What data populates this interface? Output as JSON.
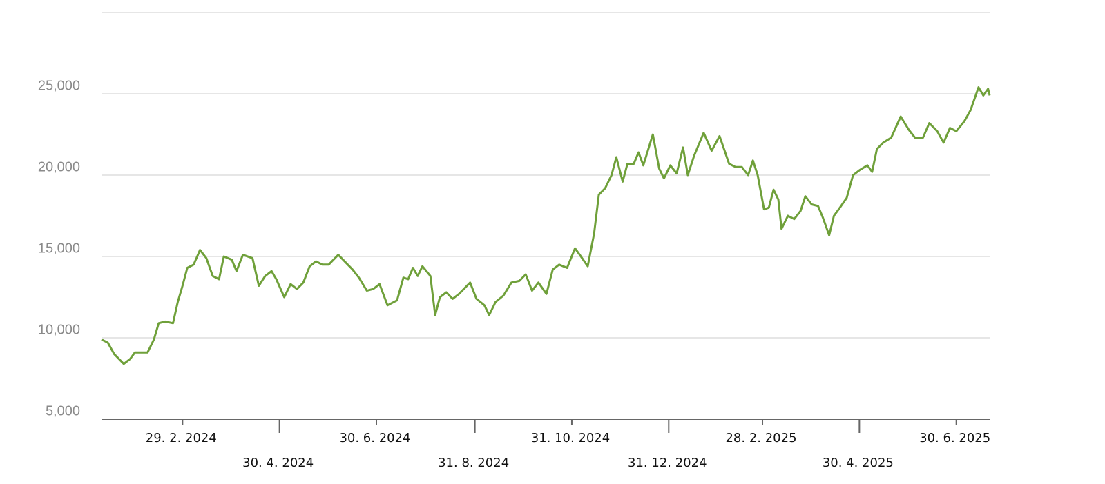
{
  "chart_data": {
    "type": "line",
    "x": [
      "2024-01-09",
      "2024-01-13",
      "2024-01-17",
      "2024-01-20",
      "2024-01-23",
      "2024-01-27",
      "2024-01-30",
      "2024-02-03",
      "2024-02-07",
      "2024-02-11",
      "2024-02-14",
      "2024-02-18",
      "2024-02-23",
      "2024-02-26",
      "2024-02-29",
      "2024-03-03",
      "2024-03-07",
      "2024-03-11",
      "2024-03-15",
      "2024-03-19",
      "2024-03-23",
      "2024-03-26",
      "2024-03-31",
      "2024-04-03",
      "2024-04-07",
      "2024-04-13",
      "2024-04-17",
      "2024-04-21",
      "2024-04-25",
      "2024-04-28",
      "2024-05-03",
      "2024-05-07",
      "2024-05-11",
      "2024-05-15",
      "2024-05-19",
      "2024-05-23",
      "2024-05-27",
      "2024-05-31",
      "2024-06-06",
      "2024-06-10",
      "2024-06-15",
      "2024-06-19",
      "2024-06-24",
      "2024-06-28",
      "2024-07-02",
      "2024-07-07",
      "2024-07-13",
      "2024-07-17",
      "2024-07-20",
      "2024-07-23",
      "2024-07-26",
      "2024-07-29",
      "2024-08-03",
      "2024-08-06",
      "2024-08-09",
      "2024-08-13",
      "2024-08-17",
      "2024-08-21",
      "2024-08-28",
      "2024-09-01",
      "2024-09-06",
      "2024-09-09",
      "2024-09-13",
      "2024-09-18",
      "2024-09-23",
      "2024-09-28",
      "2024-10-02",
      "2024-10-06",
      "2024-10-10",
      "2024-10-15",
      "2024-10-19",
      "2024-10-23",
      "2024-10-28",
      "2024-11-02",
      "2024-11-05",
      "2024-11-10",
      "2024-11-14",
      "2024-11-17",
      "2024-11-21",
      "2024-11-25",
      "2024-11-28",
      "2024-12-02",
      "2024-12-05",
      "2024-12-09",
      "2024-12-12",
      "2024-12-15",
      "2024-12-21",
      "2024-12-25",
      "2024-12-28",
      "2025-01-01",
      "2025-01-05",
      "2025-01-09",
      "2025-01-12",
      "2025-01-16",
      "2025-01-22",
      "2025-01-27",
      "2025-02-01",
      "2025-02-07",
      "2025-02-11",
      "2025-02-15",
      "2025-02-19",
      "2025-02-22",
      "2025-02-25",
      "2025-03-01",
      "2025-03-04",
      "2025-03-07",
      "2025-03-10",
      "2025-03-12",
      "2025-03-16",
      "2025-03-20",
      "2025-03-24",
      "2025-03-27",
      "2025-03-31",
      "2025-04-04",
      "2025-04-07",
      "2025-04-11",
      "2025-04-14",
      "2025-04-17",
      "2025-04-22",
      "2025-04-26",
      "2025-04-30",
      "2025-05-05",
      "2025-05-08",
      "2025-05-11",
      "2025-05-15",
      "2025-05-20",
      "2025-05-26",
      "2025-05-31",
      "2025-06-04",
      "2025-06-09",
      "2025-06-13",
      "2025-06-18",
      "2025-06-22",
      "2025-06-26",
      "2025-06-30",
      "2025-07-05",
      "2025-07-09",
      "2025-07-14",
      "2025-07-17",
      "2025-07-20",
      "2025-07-21"
    ],
    "series": [
      {
        "color": "#6fa03a",
        "values": [
          9900,
          9700,
          9000,
          8700,
          8400,
          8700,
          9100,
          9100,
          9100,
          9900,
          10900,
          11000,
          10900,
          12200,
          13200,
          14300,
          14500,
          15400,
          14900,
          13800,
          13600,
          15000,
          14800,
          14100,
          15100,
          14900,
          13200,
          13800,
          14100,
          13600,
          12500,
          13300,
          13000,
          13400,
          14400,
          14700,
          14500,
          14500,
          15100,
          14700,
          14200,
          13700,
          12900,
          13000,
          13300,
          12000,
          12300,
          13700,
          13600,
          14300,
          13800,
          14400,
          13800,
          11400,
          12500,
          12800,
          12400,
          12700,
          13400,
          12400,
          12000,
          11400,
          12200,
          12600,
          13400,
          13500,
          13900,
          12900,
          13400,
          12700,
          14200,
          14500,
          14300,
          15500,
          15100,
          14400,
          16400,
          18800,
          19200,
          20000,
          21100,
          19600,
          20700,
          20700,
          21400,
          20600,
          22500,
          20400,
          19800,
          20600,
          20100,
          21700,
          20000,
          21200,
          22600,
          21500,
          22400,
          20700,
          20500,
          20500,
          20000,
          20900,
          20000,
          17900,
          18000,
          19100,
          18500,
          16700,
          17500,
          17300,
          17800,
          18700,
          18200,
          18100,
          17400,
          16300,
          17500,
          17900,
          18600,
          20000,
          20300,
          20600,
          20200,
          21600,
          22000,
          22300,
          23600,
          22800,
          22300,
          22300,
          23200,
          22700,
          22000,
          22900,
          22700,
          23300,
          24000,
          25400,
          24900,
          25300,
          24900
        ]
      }
    ],
    "xlim": [
      "2024-01-09",
      "2025-07-21"
    ],
    "xticks": [
      {
        "value": "2024-02-29",
        "label": "29. 2. 2024"
      },
      {
        "value": "2024-04-30",
        "label": "30. 4. 2024"
      },
      {
        "value": "2024-06-30",
        "label": "30. 6. 2024"
      },
      {
        "value": "2024-08-31",
        "label": "31. 8. 2024"
      },
      {
        "value": "2024-10-31",
        "label": "31. 10. 2024"
      },
      {
        "value": "2024-12-31",
        "label": "31. 12. 2024"
      },
      {
        "value": "2025-02-28",
        "label": "28. 2. 2025"
      },
      {
        "value": "2025-04-30",
        "label": "30. 4. 2025"
      },
      {
        "value": "2025-06-30",
        "label": "30. 6. 2025"
      }
    ],
    "ylim": [
      5000,
      30000
    ],
    "yticks": [
      {
        "value": 5000,
        "label": "5,000"
      },
      {
        "value": 10000,
        "label": "10,000"
      },
      {
        "value": 15000,
        "label": "15,000"
      },
      {
        "value": 20000,
        "label": "20,000"
      },
      {
        "value": 25000,
        "label": "25,000"
      }
    ],
    "grid": true
  }
}
